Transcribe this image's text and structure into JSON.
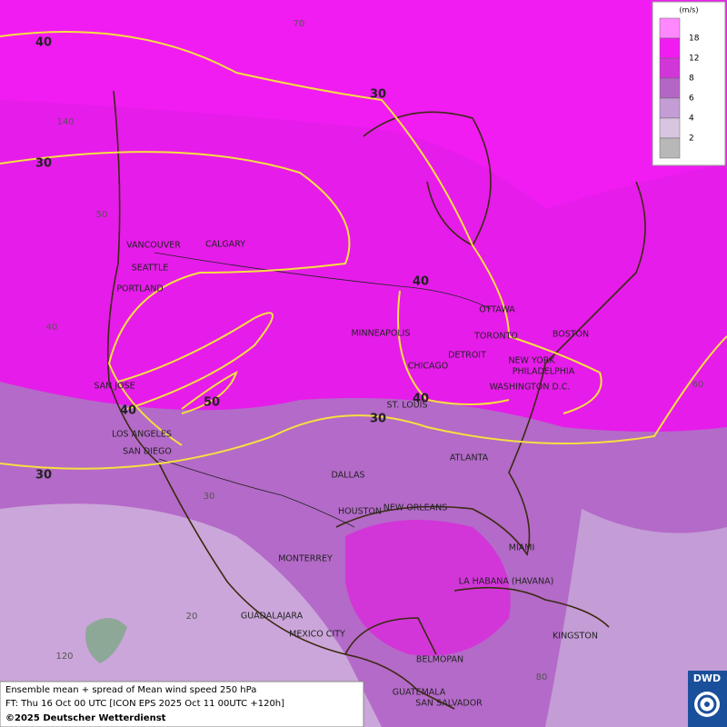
{
  "legend": {
    "unit": "(m/s)",
    "ticks": [
      18,
      12,
      8,
      6,
      4,
      2
    ],
    "colors": [
      "#ff88ff",
      "#f21cf2",
      "#d236d8",
      "#b466c6",
      "#c49cd6",
      "#d8c6e0",
      "#b8b8b8"
    ]
  },
  "grid_labels": [
    "70",
    "140",
    "50",
    "40",
    "60",
    "30",
    "20",
    "120",
    "80"
  ],
  "contour_labels": [
    "40",
    "30",
    "30",
    "40",
    "40",
    "50",
    "40",
    "30",
    "30"
  ],
  "cities": [
    "VANCOUVER",
    "CALGARY",
    "SEATTLE",
    "PORTLAND",
    "MINNEAPOLIS",
    "OTTAWA",
    "TORONTO",
    "BOSTON",
    "DETROIT",
    "NEW YORK",
    "CHICAGO",
    "PHILADELPHIA",
    "WASHINGTON D.C.",
    "SAN JOSE",
    "ST. LOUIS",
    "LOS ANGELES",
    "SAN DIEGO",
    "ATLANTA",
    "DALLAS",
    "HOUSTON",
    "NEW ORLEANS",
    "MIAMI",
    "MONTERREY",
    "LA HABANA (HAVANA)",
    "GUADALAJARA",
    "MEXICO CITY",
    "KINGSTON",
    "BELMOPAN",
    "GUATEMALA",
    "SAN SALVADOR"
  ],
  "caption": {
    "line1": "Ensemble mean + spread of Mean wind speed 250 hPa",
    "line2": "FT: Thu 16 Oct 00 UTC [ICON EPS 2025 Oct 11 00UTC +120h]",
    "line3": "©2025 Deutscher Wetterdienst"
  },
  "logo": "DWD"
}
